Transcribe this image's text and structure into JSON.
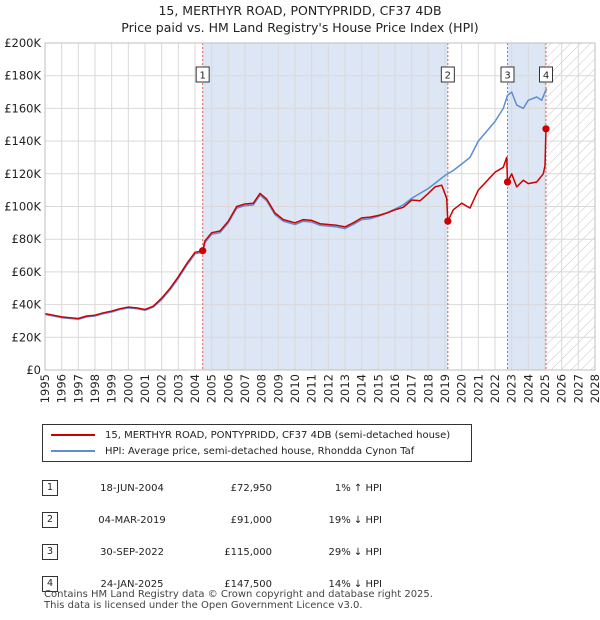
{
  "title_line1": "15, MERTHYR ROAD, PONTYPRIDD, CF37 4DB",
  "title_line2": "Price paid vs. HM Land Registry's House Price Index (HPI)",
  "colors": {
    "property": "#cc0000",
    "hpi": "#5b8fd1",
    "shade": "#dde6f4",
    "grid": "#d9d9d9"
  },
  "chart_data": {
    "type": "line",
    "title": "Price paid vs. HM Land Registry's House Price Index (HPI)",
    "xlabel": "",
    "ylabel": "",
    "xlim": [
      1995,
      2028
    ],
    "ylim": [
      0,
      200000
    ],
    "y_ticks": [
      0,
      20000,
      40000,
      60000,
      80000,
      100000,
      120000,
      140000,
      160000,
      180000,
      200000
    ],
    "y_tick_labels": [
      "£0",
      "£20K",
      "£40K",
      "£60K",
      "£80K",
      "£100K",
      "£120K",
      "£140K",
      "£160K",
      "£180K",
      "£200K"
    ],
    "x_ticks": [
      1995,
      1996,
      1997,
      1998,
      1999,
      2000,
      2001,
      2002,
      2003,
      2004,
      2005,
      2006,
      2007,
      2008,
      2009,
      2010,
      2011,
      2012,
      2013,
      2014,
      2015,
      2016,
      2017,
      2018,
      2019,
      2020,
      2021,
      2022,
      2023,
      2024,
      2025,
      2026,
      2027,
      2028
    ],
    "x_tick_labels": [
      "1995",
      "1996",
      "1997",
      "1998",
      "1999",
      "2000",
      "2001",
      "2002",
      "2003",
      "2004",
      "2005",
      "2006",
      "2007",
      "2008",
      "2009",
      "2010",
      "2011",
      "2012",
      "2013",
      "2014",
      "2015",
      "2016",
      "2017",
      "2018",
      "2019",
      "2020",
      "2021",
      "2022",
      "2023",
      "2024",
      "2025",
      "2026",
      "2027",
      "2028"
    ],
    "future_hatch_from": 2025.1,
    "series": [
      {
        "name": "15, MERTHYR ROAD, PONTYPRIDD, CF37 4DB (semi-detached house)",
        "color": "#cc0000",
        "x": [
          1995,
          1995.5,
          1996,
          1996.5,
          1997,
          1997.5,
          1998,
          1998.5,
          1999,
          1999.5,
          2000,
          2000.5,
          2001,
          2001.5,
          2002,
          2002.5,
          2003,
          2003.5,
          2004,
          2004.46,
          2004.6,
          2005,
          2005.5,
          2006,
          2006.5,
          2007,
          2007.5,
          2007.9,
          2008.3,
          2008.8,
          2009.3,
          2010,
          2010.5,
          2011,
          2011.5,
          2012,
          2012.5,
          2013,
          2013.5,
          2014,
          2014.5,
          2015,
          2015.5,
          2016,
          2016.5,
          2017,
          2017.5,
          2018,
          2018.4,
          2018.8,
          2019.1,
          2019.17,
          2019.5,
          2020,
          2020.5,
          2021,
          2021.5,
          2022,
          2022.5,
          2022.7,
          2022.75,
          2023,
          2023.3,
          2023.7,
          2024,
          2024.5,
          2024.9,
          2025.0,
          2025.06,
          2025.1
        ],
        "values": [
          34500,
          33500,
          32500,
          32000,
          31500,
          33000,
          33500,
          35000,
          36000,
          37500,
          38500,
          38000,
          37000,
          39000,
          44000,
          50000,
          57000,
          65000,
          72000,
          72950,
          79000,
          84000,
          85000,
          91000,
          100000,
          101500,
          102000,
          108000,
          104500,
          96000,
          92000,
          90000,
          92000,
          91500,
          89500,
          89000,
          88500,
          87500,
          90000,
          93000,
          93500,
          94500,
          96000,
          98000,
          99500,
          104000,
          103500,
          108000,
          112000,
          113000,
          105000,
          91000,
          98000,
          102000,
          99000,
          110000,
          115500,
          121000,
          124000,
          130000,
          115000,
          120000,
          112000,
          116000,
          114000,
          115000,
          120000,
          125000,
          147500,
          147500
        ]
      },
      {
        "name": "HPI: Average price, semi-detached house, Rhondda Cynon Taf",
        "color": "#5b8fd1",
        "x": [
          1995,
          1995.5,
          1996,
          1996.5,
          1997,
          1997.5,
          1998,
          1998.5,
          1999,
          1999.5,
          2000,
          2000.5,
          2001,
          2001.5,
          2002,
          2002.5,
          2003,
          2003.5,
          2004,
          2004.46,
          2004.6,
          2005,
          2005.5,
          2006,
          2006.5,
          2007,
          2007.5,
          2007.9,
          2008.3,
          2008.8,
          2009.3,
          2010,
          2010.5,
          2011,
          2011.5,
          2012,
          2012.5,
          2013,
          2013.5,
          2014,
          2014.5,
          2015,
          2015.5,
          2016,
          2016.5,
          2017,
          2017.5,
          2018,
          2018.5,
          2019,
          2019.5,
          2020,
          2020.5,
          2021,
          2021.5,
          2022,
          2022.5,
          2022.75,
          2023,
          2023.3,
          2023.7,
          2024,
          2024.5,
          2024.8,
          2025.0,
          2025.1
        ],
        "values": [
          34000,
          33000,
          32000,
          31500,
          31000,
          32500,
          33000,
          34500,
          35500,
          37000,
          38000,
          37500,
          36500,
          38500,
          43000,
          49000,
          56000,
          64000,
          71000,
          72200,
          78000,
          83000,
          84000,
          90000,
          99000,
          100500,
          101000,
          107000,
          103500,
          95000,
          91000,
          89000,
          91000,
          90500,
          88500,
          88000,
          87500,
          86500,
          89000,
          92000,
          92500,
          94000,
          96000,
          98500,
          101000,
          105000,
          108000,
          111000,
          115000,
          119000,
          122000,
          126000,
          130000,
          140000,
          146000,
          152000,
          160000,
          168000,
          170000,
          162000,
          160000,
          165000,
          167000,
          165000,
          170000,
          172000
        ]
      }
    ],
    "sales": [
      {
        "label": "1",
        "x": 2004.46,
        "value": 72950
      },
      {
        "label": "2",
        "x": 2019.17,
        "value": 91000
      },
      {
        "label": "3",
        "x": 2022.75,
        "value": 115000
      },
      {
        "label": "4",
        "x": 2025.06,
        "value": 147500
      }
    ]
  },
  "sales_table": [
    {
      "num": "1",
      "date": "18-JUN-2004",
      "price": "£72,950",
      "hpi": "1% ↑ HPI"
    },
    {
      "num": "2",
      "date": "04-MAR-2019",
      "price": "£91,000",
      "hpi": "19% ↓ HPI"
    },
    {
      "num": "3",
      "date": "30-SEP-2022",
      "price": "£115,000",
      "hpi": "29% ↓ HPI"
    },
    {
      "num": "4",
      "date": "24-JAN-2025",
      "price": "£147,500",
      "hpi": "14% ↓ HPI"
    }
  ],
  "legend": {
    "property": "15, MERTHYR ROAD, PONTYPRIDD, CF37 4DB (semi-detached house)",
    "hpi": "HPI: Average price, semi-detached house, Rhondda Cynon Taf"
  },
  "footer_line1": "Contains HM Land Registry data © Crown copyright and database right 2025.",
  "footer_line2": "This data is licensed under the Open Government Licence v3.0."
}
